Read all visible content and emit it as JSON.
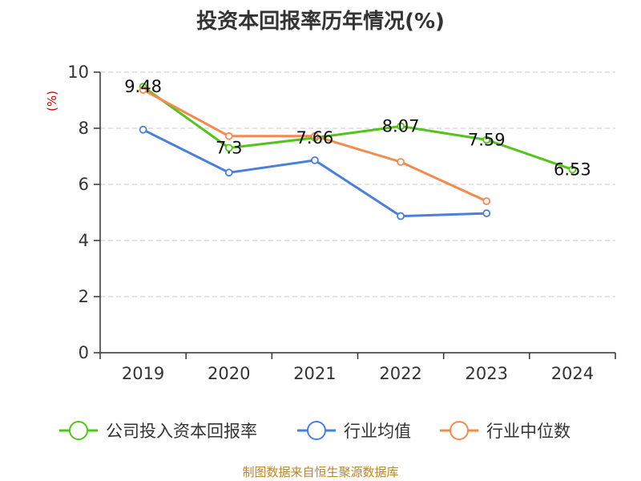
{
  "chart_data": {
    "type": "line",
    "title": "投资本回报率历年情况(%)",
    "ylabel": "(%)",
    "xlabel": "",
    "categories": [
      "2019",
      "2020",
      "2021",
      "2022",
      "2023",
      "2024"
    ],
    "ylim": [
      0,
      10
    ],
    "yticks": [
      0,
      2,
      4,
      6,
      8,
      10
    ],
    "grid": true,
    "legend_position": "bottom",
    "series": [
      {
        "name": "公司投入资本回报率",
        "color": "#52c41a",
        "values": [
          9.48,
          7.3,
          7.66,
          8.07,
          7.59,
          6.53
        ],
        "show_labels": true
      },
      {
        "name": "行业均值",
        "color": "#4a7fdc",
        "values": [
          7.95,
          6.42,
          6.86,
          4.87,
          4.97,
          null
        ],
        "show_labels": false
      },
      {
        "name": "行业中位数",
        "color": "#f5894f",
        "values": [
          9.37,
          7.72,
          7.72,
          6.8,
          5.4,
          null
        ],
        "show_labels": false
      }
    ],
    "source": "制图数据来自恒生聚源数据库"
  }
}
